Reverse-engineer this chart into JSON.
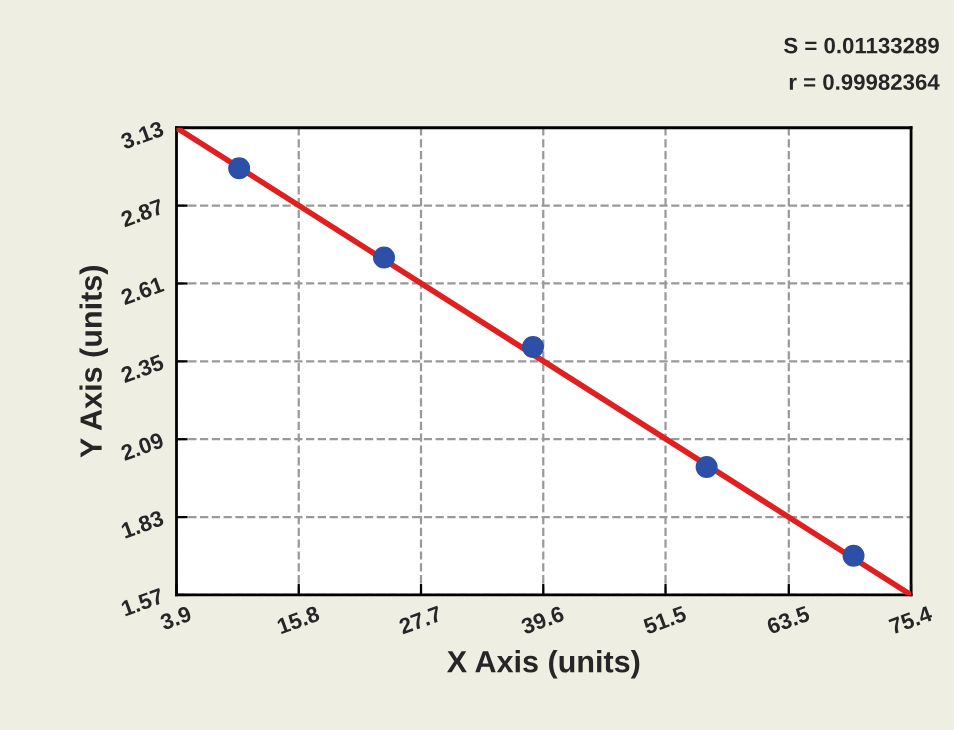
{
  "chart_data": {
    "type": "scatter",
    "xlabel": "X Axis (units)",
    "ylabel": "Y Axis (units)",
    "annotations": [
      "S = 0.01133289",
      "r = 0.99982364"
    ],
    "series": [
      {
        "color": "#2e4fa8",
        "marker": "circle",
        "x": [
          10.0,
          24.1,
          38.6,
          55.5,
          69.8
        ],
        "values": [
          2.995,
          2.697,
          2.398,
          1.997,
          1.701
        ]
      },
      {
        "type": "line",
        "color": "#e02020",
        "marker": "none",
        "line_style": "solid",
        "x": [
          3.9,
          75.4
        ],
        "values": [
          3.13,
          1.57
        ]
      }
    ],
    "xlim": [
      3.9,
      75.4
    ],
    "ylim": [
      1.57,
      3.13
    ],
    "xticks": [
      3.9,
      15.8,
      27.7,
      39.6,
      51.5,
      63.5,
      75.4
    ],
    "yticks": [
      1.57,
      1.83,
      2.09,
      2.35,
      2.61,
      2.87,
      3.13
    ],
    "grid": true
  }
}
